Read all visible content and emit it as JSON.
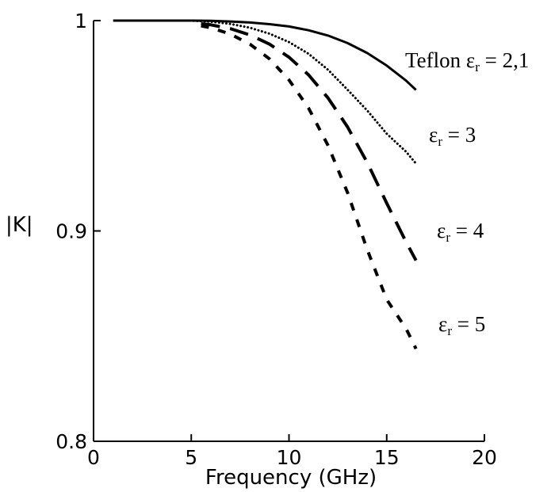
{
  "chart_data": {
    "type": "line",
    "xlabel": "Frequency (GHz)",
    "ylabel": "|K|",
    "xlim": [
      0,
      20
    ],
    "ylim": [
      0.8,
      1.0
    ],
    "x_ticks": [
      "0",
      "5",
      "10",
      "15",
      "20"
    ],
    "y_ticks": [
      "0.8",
      "0.9",
      "1"
    ],
    "grid": false,
    "legend": "none",
    "series": [
      {
        "annotation": {
          "prefix": "Teflon ",
          "symbol": "ε",
          "sub": "r",
          "suffix": " = 2,1"
        },
        "line_style": "solid",
        "x": [
          1,
          2,
          3,
          4,
          5,
          6,
          7,
          8,
          9,
          10,
          11,
          12,
          13,
          14,
          15,
          16,
          16.5
        ],
        "y": [
          1.0,
          1.0,
          1.0,
          1.0,
          1.0,
          0.9999,
          0.9996,
          0.9991,
          0.9983,
          0.9972,
          0.9954,
          0.9929,
          0.9893,
          0.9846,
          0.9786,
          0.9714,
          0.967
        ]
      },
      {
        "annotation": {
          "prefix": "",
          "symbol": "ε",
          "sub": "r",
          "suffix": " = 3"
        },
        "line_style": "dotted",
        "x": [
          4,
          5,
          6,
          7,
          8,
          9,
          10,
          11,
          12,
          13,
          14,
          15,
          16,
          16.5
        ],
        "y": [
          1.0,
          1.0,
          0.9995,
          0.9984,
          0.9966,
          0.9938,
          0.9898,
          0.9842,
          0.9766,
          0.9671,
          0.9573,
          0.9462,
          0.9376,
          0.932
        ]
      },
      {
        "annotation": {
          "prefix": "",
          "symbol": "ε",
          "sub": "r",
          "suffix": " = 4"
        },
        "line_style": "long-dash",
        "x": [
          5.5,
          6,
          7,
          8,
          9,
          10,
          11,
          12,
          13,
          14,
          15,
          16,
          16.5
        ],
        "y": [
          0.9985,
          0.998,
          0.9962,
          0.9932,
          0.9888,
          0.9826,
          0.9742,
          0.9632,
          0.9494,
          0.9326,
          0.9132,
          0.8946,
          0.886
        ]
      },
      {
        "annotation": {
          "prefix": "",
          "symbol": "ε",
          "sub": "r",
          "suffix": " = 5"
        },
        "line_style": "short-dash",
        "x": [
          5.5,
          6,
          7,
          8,
          9,
          10,
          11,
          12,
          13,
          14,
          15,
          16,
          16.5
        ],
        "y": [
          0.9975,
          0.9966,
          0.9936,
          0.9888,
          0.9818,
          0.9718,
          0.9584,
          0.9406,
          0.9182,
          0.8912,
          0.8674,
          0.8534,
          0.844
        ]
      }
    ]
  }
}
